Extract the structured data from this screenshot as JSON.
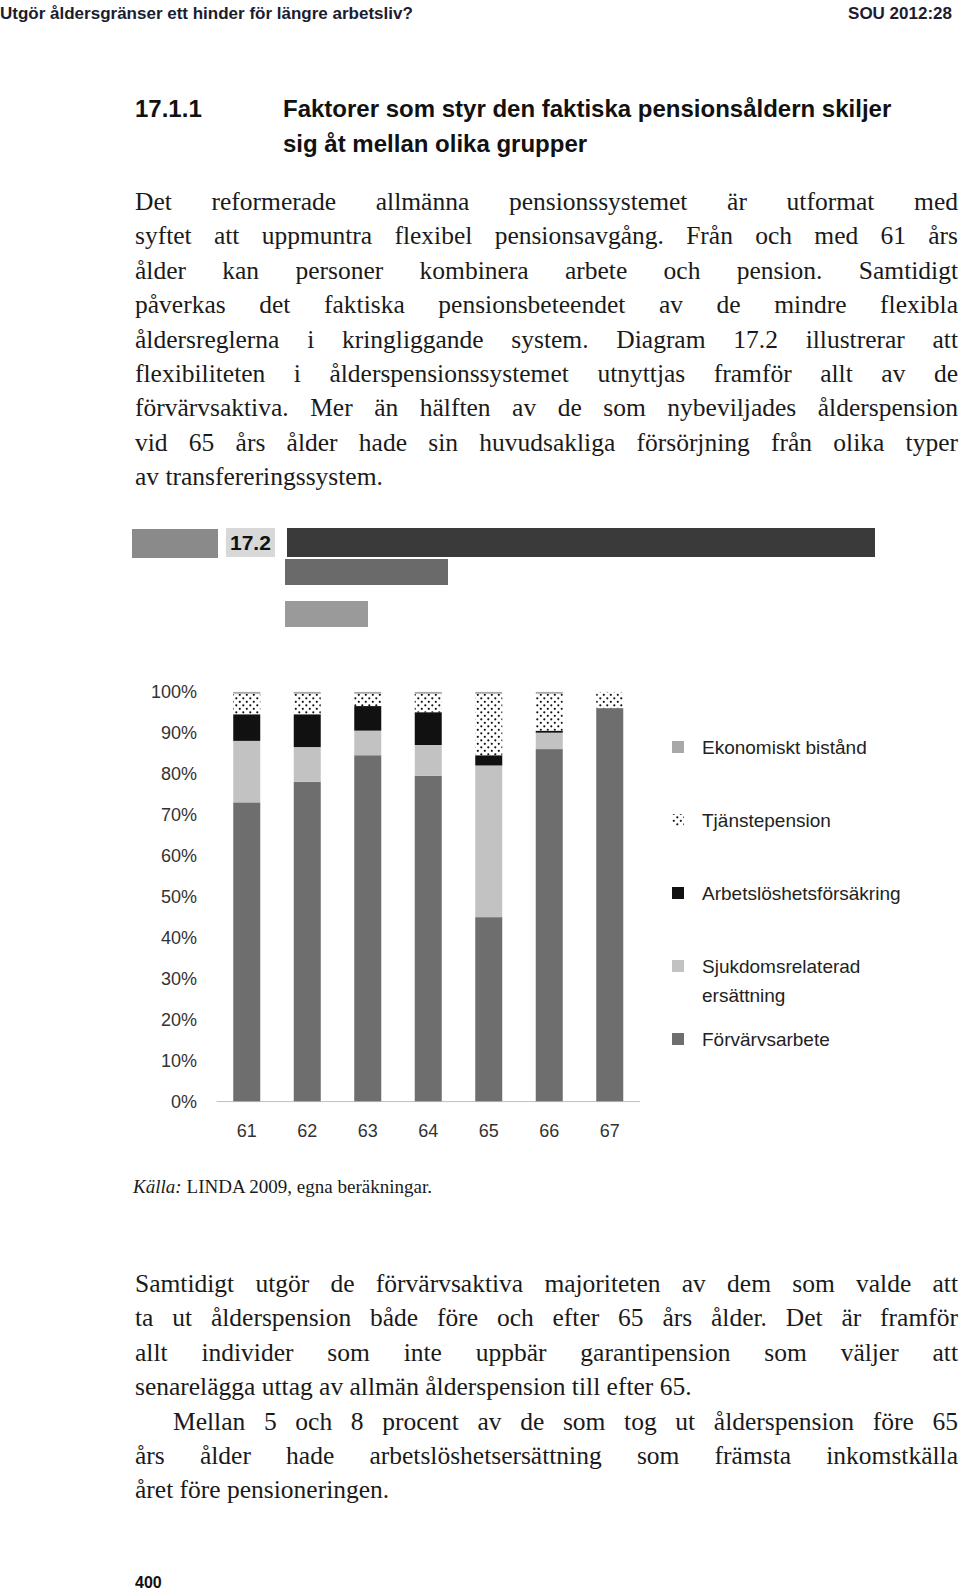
{
  "header": {
    "title": "Utgör åldersgränser ett hinder för längre arbetsliv?",
    "series": "SOU 2012:28"
  },
  "section": {
    "number": "17.1.1",
    "title_lines": [
      "Faktorer som styr den faktiska pensionsåldern skiljer",
      "sig åt mellan olika grupper"
    ]
  },
  "paragraphs_before": [
    {
      "lines": [
        "Det reformerade allmänna pensionssystemet är utformat med",
        "syftet att uppmuntra flexibel pensionsavgång. Från och med 61 års",
        "ålder kan personer kombinera arbete och pension. Samtidigt",
        "påverkas det faktiska pensionsbeteendet av de mindre flexibla",
        "åldersreglerna i kringliggande system. Diagram 17.2 illustrerar att",
        "flexibiliteten i ålderspensionssystemet utnyttjas framför allt av de",
        "förvärvsaktiva. Mer än hälften av de som nybeviljades ålderspension",
        "vid 65 års ålder hade sin huvudsakliga försörjning från olika typer",
        "av transfereringssystem."
      ]
    }
  ],
  "chart_data": {
    "type": "bar",
    "title": "17.2",
    "stacked": true,
    "grid": false,
    "legend": "right",
    "categories": [
      "61",
      "62",
      "63",
      "64",
      "65",
      "66",
      "67"
    ],
    "ylim": [
      0,
      100
    ],
    "yticks": [
      {
        "value": 0,
        "label": "0%"
      },
      {
        "value": 10,
        "label": "10%"
      },
      {
        "value": 20,
        "label": "20%"
      },
      {
        "value": 30,
        "label": "30%"
      },
      {
        "value": 40,
        "label": "40%"
      },
      {
        "value": 50,
        "label": "50%"
      },
      {
        "value": 60,
        "label": "60%"
      },
      {
        "value": 70,
        "label": "70%"
      },
      {
        "value": 80,
        "label": "80%"
      },
      {
        "value": 90,
        "label": "90%"
      },
      {
        "value": 100,
        "label": "100%"
      }
    ],
    "series": [
      {
        "name": "Förvärvsarbete",
        "color": "#6e6e6e",
        "values": [
          73,
          78,
          84.5,
          79.5,
          45,
          86,
          96
        ]
      },
      {
        "name": "Sjukdomsrelaterad ersättning",
        "color": "#c2c2c2",
        "values": [
          15,
          8.5,
          6,
          7.5,
          37,
          4,
          0
        ]
      },
      {
        "name": "Arbetslöshetsförsäkring",
        "color": "#111111",
        "values": [
          6.5,
          8,
          6,
          8,
          2.5,
          0.5,
          0
        ]
      },
      {
        "name": "Tjänstepension",
        "color": "#ffffff",
        "values": [
          5,
          5,
          3,
          4.5,
          15,
          9,
          4
        ]
      },
      {
        "name": "Ekonomiskt bistånd",
        "color": "#a8a8a8",
        "values": [
          0.5,
          0.5,
          0.5,
          0.5,
          0.5,
          0.5,
          0
        ]
      }
    ]
  },
  "source": {
    "label": "Källa:",
    "text": "LINDA 2009, egna beräkningar."
  },
  "paragraphs_after": [
    {
      "lines": [
        "Samtidigt utgör de förvärvsaktiva majoriteten av dem som valde att",
        "ta ut ålderspension både före och efter 65 års ålder. Det är framför",
        "allt individer som inte uppbär garantipension som väljer att",
        "senarelägga uttag av allmän ålderspension till efter 65."
      ]
    },
    {
      "lines": [
        "Mellan 5 och 8 procent av de som tog ut ålderspension före 65",
        "års ålder hade arbetslöshetsersättning som främsta inkomstkälla",
        "året före pensioneringen."
      ]
    }
  ],
  "page_number": "400"
}
